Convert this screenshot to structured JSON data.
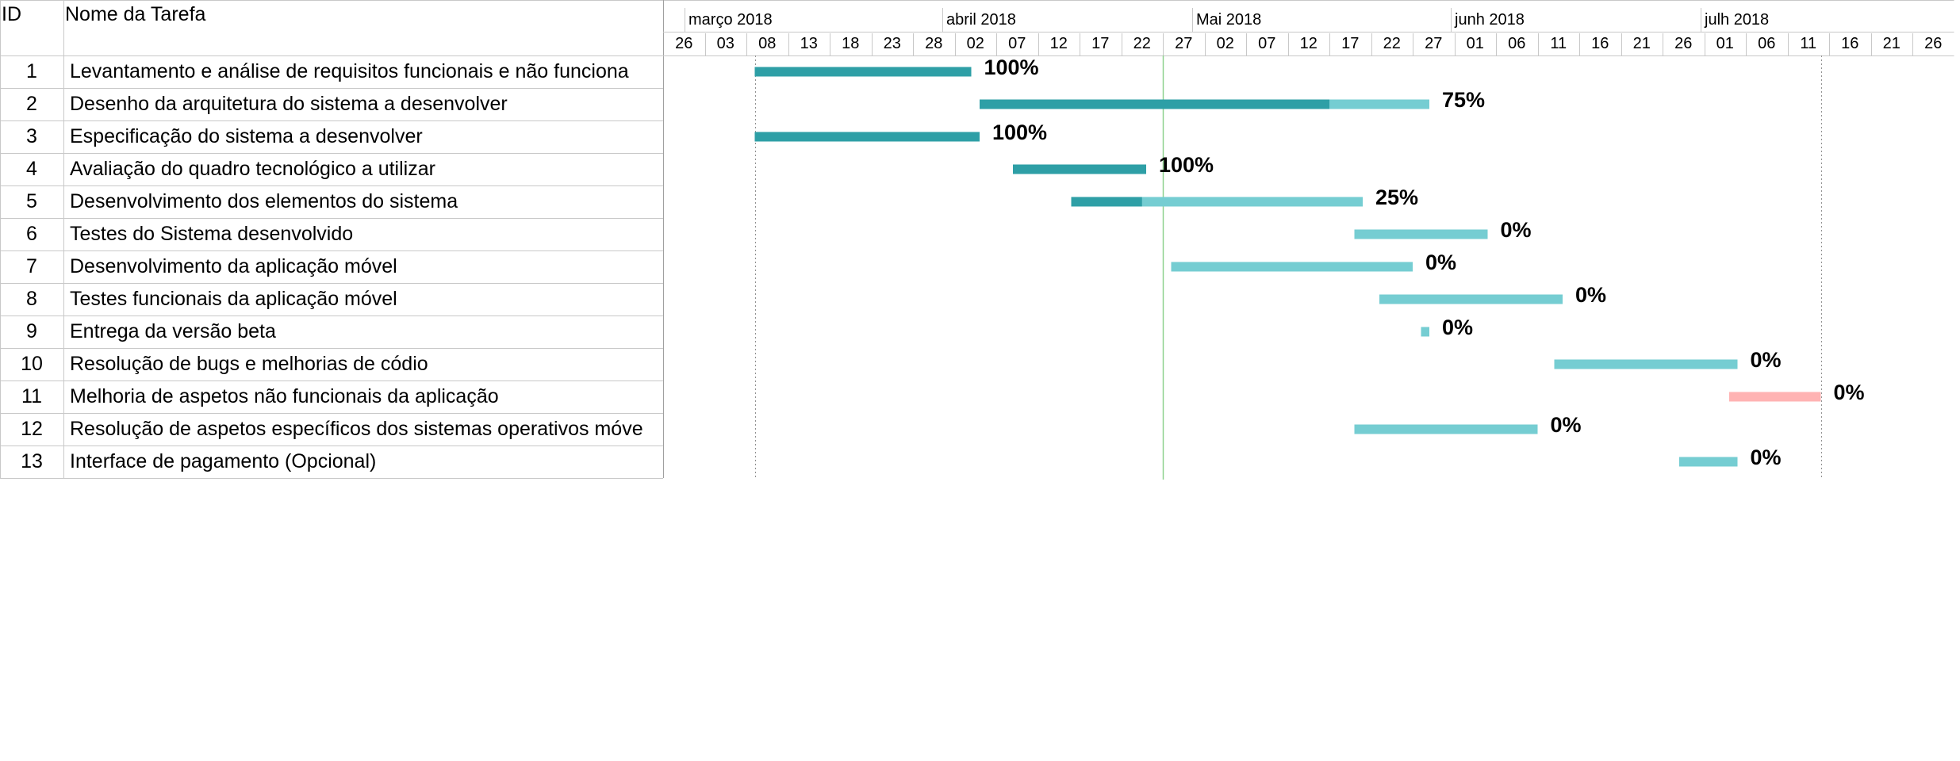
{
  "header": {
    "id_label": "ID",
    "name_label": "Nome da Tarefa"
  },
  "timeline": {
    "months": [
      {
        "label": "março 2018",
        "day_index": 0.6
      },
      {
        "label": "abril 2018",
        "day_index": 6.8
      },
      {
        "label": "Mai 2018",
        "day_index": 12.8
      },
      {
        "label": "junh 2018",
        "day_index": 19.0
      },
      {
        "label": "julh 2018",
        "day_index": 25.0
      }
    ],
    "days": [
      "26",
      "03",
      "08",
      "13",
      "18",
      "23",
      "28",
      "02",
      "07",
      "12",
      "17",
      "22",
      "27",
      "02",
      "07",
      "12",
      "17",
      "22",
      "27",
      "01",
      "06",
      "11",
      "16",
      "21",
      "26",
      "01",
      "06",
      "11",
      "16",
      "21",
      "26"
    ]
  },
  "tasks": [
    {
      "id": "1",
      "name": "Levantamento e análise de requisitos funcionais e não funciona",
      "start": 2.2,
      "end": 7.4,
      "done_end": 7.4,
      "percent": "100%",
      "status": "normal"
    },
    {
      "id": "2",
      "name": "Desenho da arquitetura do sistema a desenvolver",
      "start": 7.6,
      "end": 18.4,
      "done_end": 16.0,
      "percent": "75%",
      "status": "normal"
    },
    {
      "id": "3",
      "name": "Especificação do sistema a desenvolver",
      "start": 2.2,
      "end": 7.6,
      "done_end": 7.6,
      "percent": "100%",
      "status": "normal"
    },
    {
      "id": "4",
      "name": "Avaliação do quadro tecnológico a utilizar",
      "start": 8.4,
      "end": 11.6,
      "done_end": 11.6,
      "percent": "100%",
      "status": "normal"
    },
    {
      "id": "5",
      "name": "Desenvolvimento dos elementos do sistema",
      "start": 9.8,
      "end": 16.8,
      "done_end": 11.5,
      "percent": "25%",
      "status": "normal"
    },
    {
      "id": "6",
      "name": "Testes do Sistema desenvolvido",
      "start": 16.6,
      "end": 19.8,
      "done_end": 16.6,
      "percent": "0%",
      "status": "normal"
    },
    {
      "id": "7",
      "name": "Desenvolvimento da aplicação móvel",
      "start": 12.2,
      "end": 18.0,
      "done_end": 12.2,
      "percent": "0%",
      "status": "normal"
    },
    {
      "id": "8",
      "name": "Testes funcionais da aplicação móvel",
      "start": 17.2,
      "end": 21.6,
      "done_end": 17.2,
      "percent": "0%",
      "status": "normal"
    },
    {
      "id": "9",
      "name": "Entrega da versão beta",
      "start": 18.2,
      "end": 18.4,
      "done_end": 18.2,
      "percent": "0%",
      "status": "normal"
    },
    {
      "id": "10",
      "name": "Resolução de bugs e melhorias de códio",
      "start": 21.4,
      "end": 25.8,
      "done_end": 21.4,
      "percent": "0%",
      "status": "normal"
    },
    {
      "id": "11",
      "name": "Melhoria de aspetos não funcionais da aplicação",
      "start": 25.6,
      "end": 27.8,
      "done_end": 25.6,
      "percent": "0%",
      "status": "critical"
    },
    {
      "id": "12",
      "name": "Resolução de aspetos específicos dos sistemas operativos móve",
      "start": 16.6,
      "end": 21.0,
      "done_end": 16.6,
      "percent": "0%",
      "status": "normal"
    },
    {
      "id": "13",
      "name": "Interface de pagamento (Opcional)",
      "start": 24.4,
      "end": 25.8,
      "done_end": 24.4,
      "percent": "0%",
      "status": "normal"
    }
  ],
  "markers": {
    "today_day_index": 12.0,
    "project_start_day_index": 2.2,
    "project_end_day_index": 27.8
  },
  "colors": {
    "done": "#2e9fa6",
    "remaining": "#75cdd2",
    "critical": "#ffb3b3",
    "grid": "#c8c8c8",
    "today": "#8fd18f",
    "marker": "#909090"
  }
}
